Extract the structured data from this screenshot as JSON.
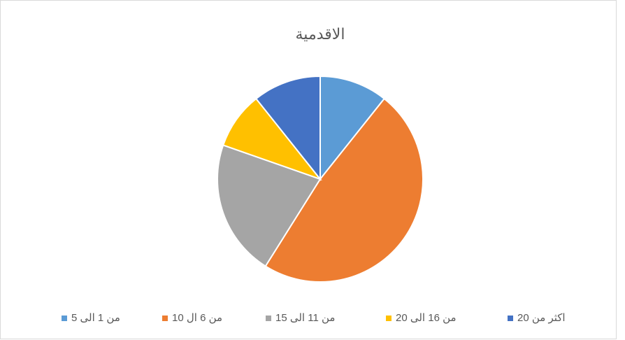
{
  "chart_data": {
    "type": "pie",
    "title": "الاقدمية",
    "categories": [
      "من 1 الى 5",
      "من 6 ال 10",
      "من 11 الى 15",
      "من 16 الى 20",
      "اكثر من 20"
    ],
    "values": [
      6,
      27,
      12,
      5,
      6
    ],
    "colors": [
      "#5b9bd5",
      "#ed7d31",
      "#a5a5a5",
      "#ffc000",
      "#4472c4"
    ],
    "legend": "bottom"
  }
}
